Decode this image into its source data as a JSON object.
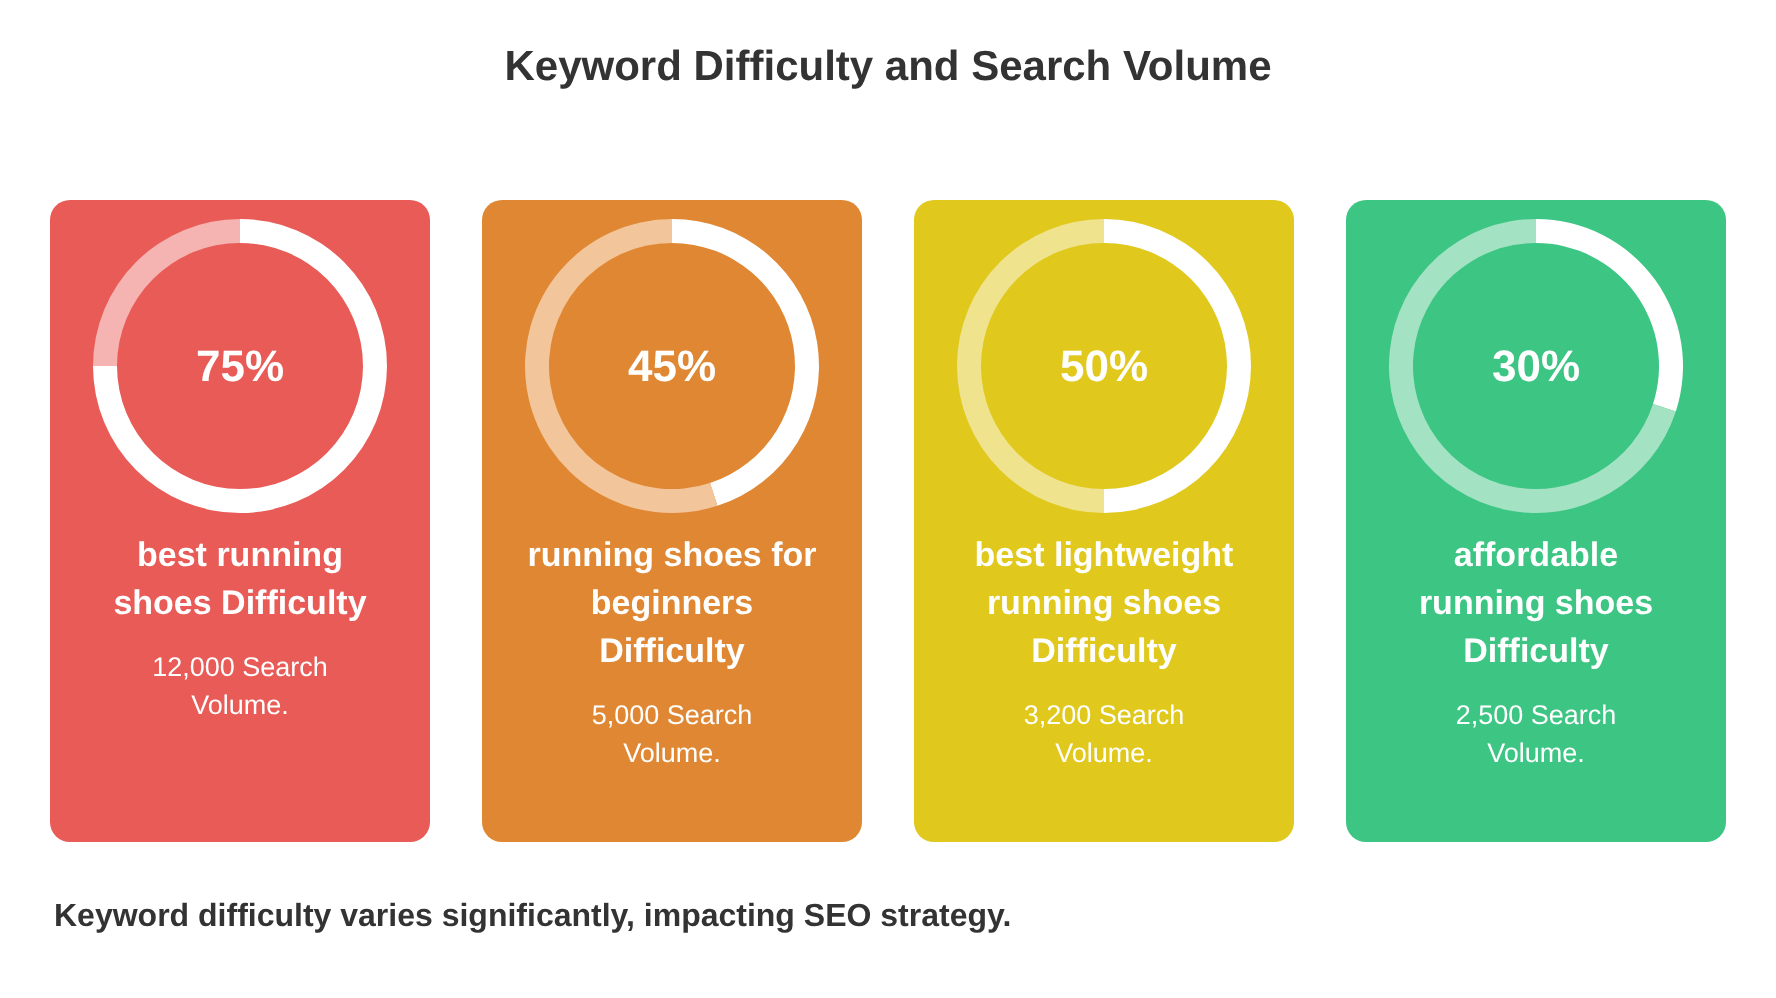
{
  "chart_data": [
    {
      "type": "donut",
      "title": "Keyword Difficulty and Search Volume",
      "subtitle": "best running shoes Difficulty",
      "annotations": [
        "12,000 Search Volume."
      ],
      "categories": [
        null,
        null
      ],
      "values": [
        75,
        25
      ],
      "colors": [
        "#ffffff",
        "#f5b3b1"
      ],
      "value_labels": [
        "75%",
        null
      ]
    },
    {
      "type": "donut",
      "subtitle": "running shoes for beginners Difficulty",
      "annotations": [
        "5,000 Search Volume."
      ],
      "categories": [
        null,
        null
      ],
      "values": [
        45,
        55
      ],
      "colors": [
        "#ffffff",
        "#f2c59a"
      ],
      "value_labels": [
        "45%",
        null
      ]
    },
    {
      "type": "donut",
      "subtitle": "best lightweight running shoes Difficulty",
      "annotations": [
        "3,200 Search Volume."
      ],
      "categories": [
        null,
        null
      ],
      "values": [
        50,
        50
      ],
      "colors": [
        "#ffffff",
        "#f0e38e"
      ],
      "value_labels": [
        "50%",
        null
      ]
    },
    {
      "type": "donut",
      "subtitle": "affordable running shoes Difficulty",
      "annotations": [
        "2,500 Search Volume.",
        "Keyword difficulty varies significantly, impacting SEO strategy."
      ],
      "categories": [
        null,
        null
      ],
      "values": [
        30,
        70
      ],
      "colors": [
        "#ffffff",
        "#a3e3c3"
      ],
      "value_labels": [
        "30%",
        null
      ]
    }
  ]
}
